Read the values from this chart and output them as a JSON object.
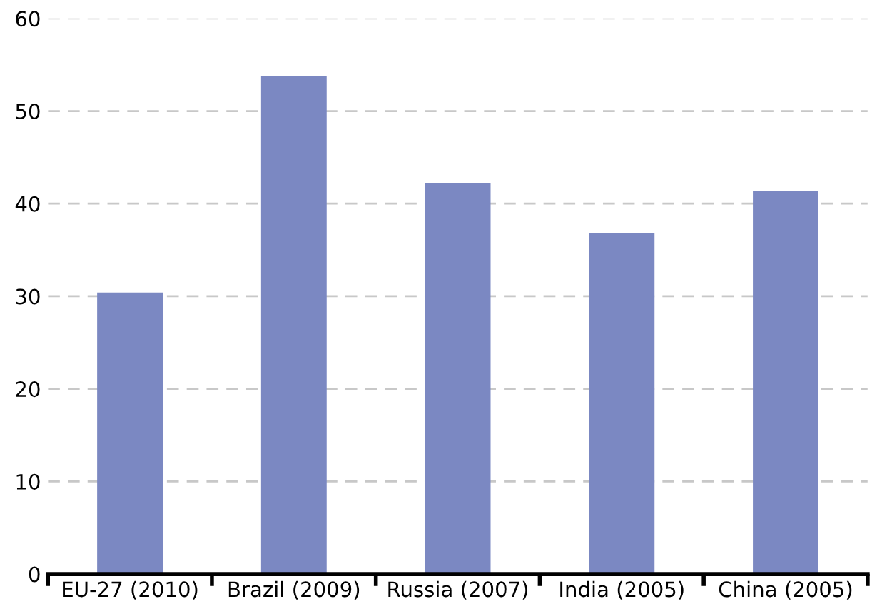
{
  "chart_data": {
    "type": "bar",
    "categories": [
      "EU-27 (2010)",
      "Brazil (2009)",
      "Russia (2007)",
      "India (2005)",
      "China (2005)"
    ],
    "values": [
      30.4,
      53.8,
      42.2,
      36.8,
      41.4
    ],
    "color": "#7b88c2",
    "ylim": [
      0,
      60
    ],
    "yticks": [
      0,
      10,
      20,
      30,
      40,
      50,
      60
    ],
    "grid": "y"
  }
}
